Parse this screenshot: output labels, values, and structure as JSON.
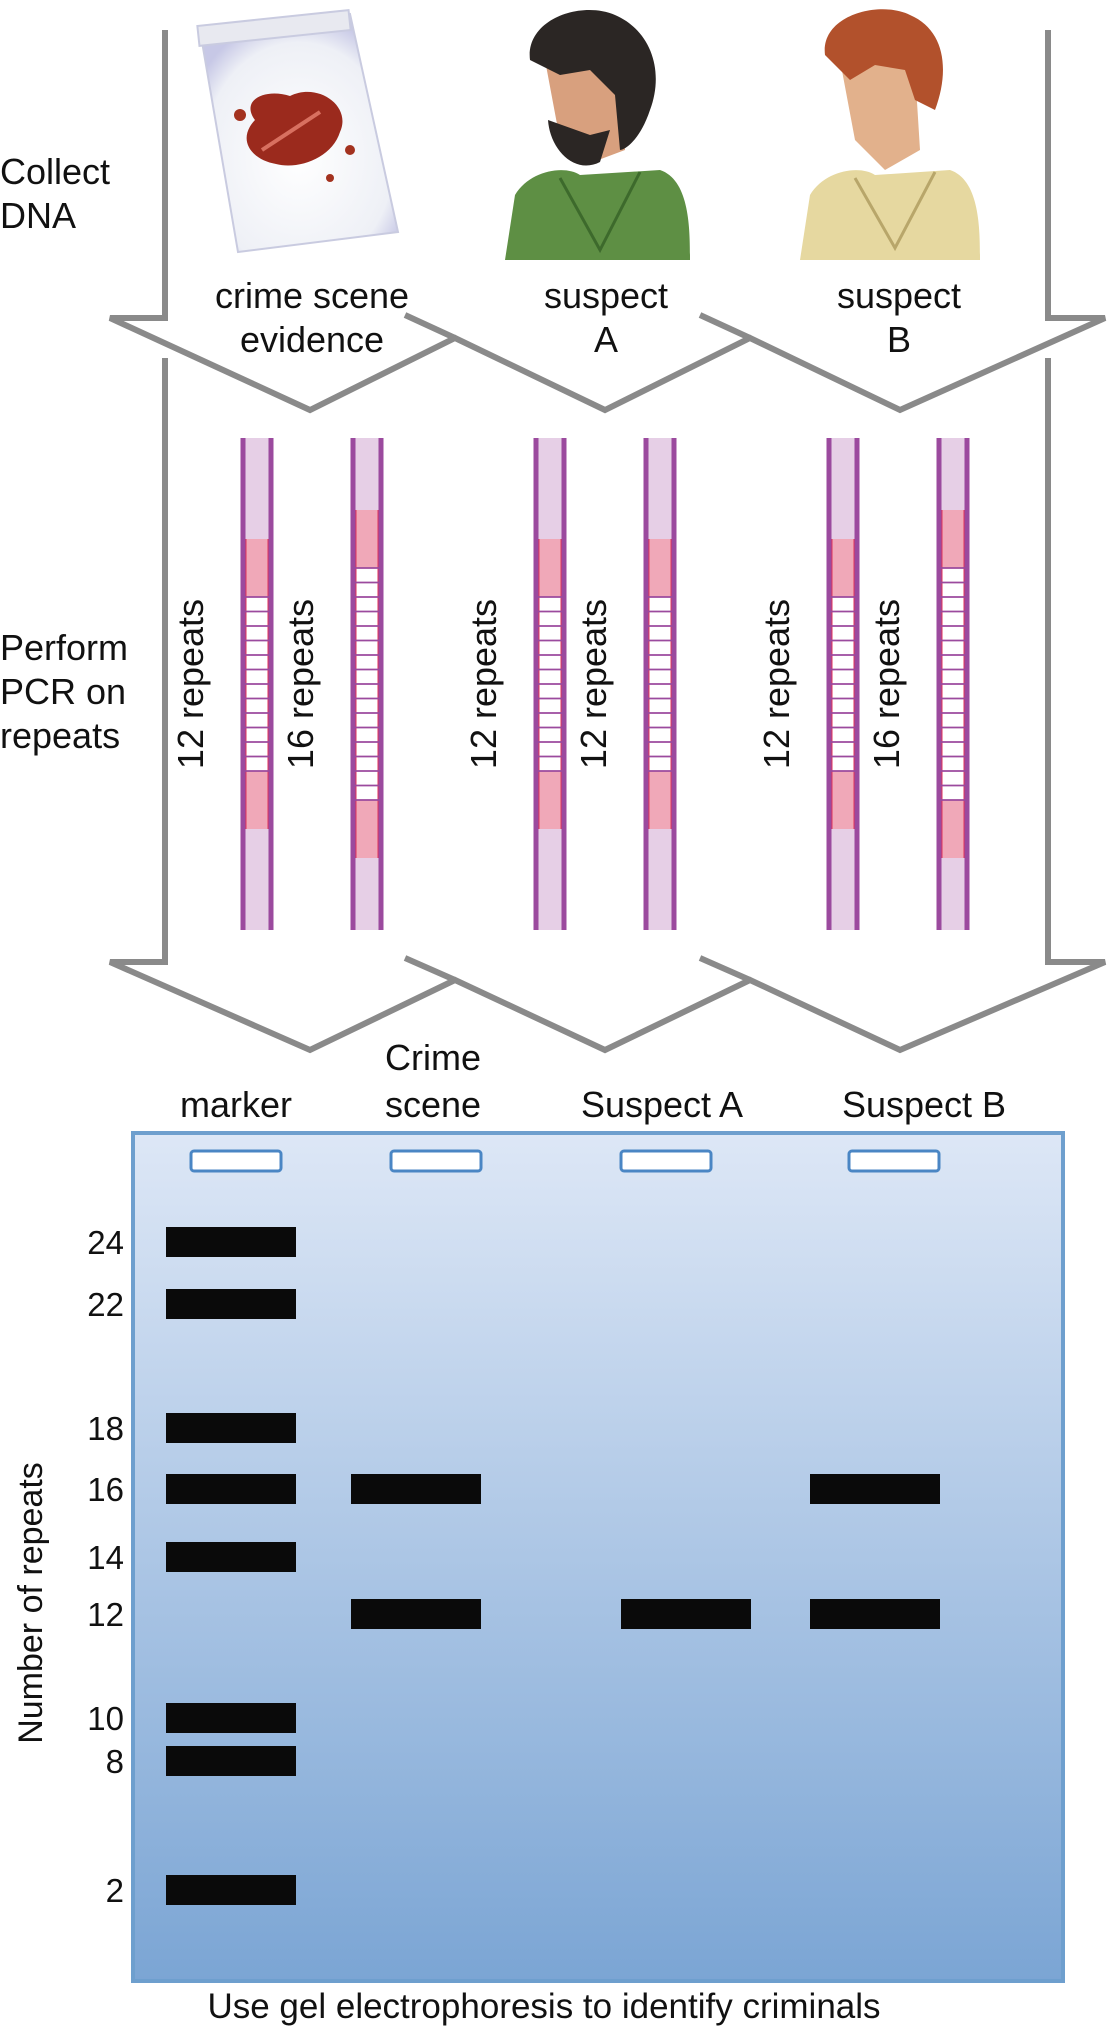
{
  "steps": {
    "collect": [
      "Collect",
      "DNA"
    ],
    "pcr": [
      "Perform",
      "PCR on",
      "repeats"
    ]
  },
  "sources": [
    {
      "id": "evidence",
      "lines": [
        "crime scene",
        "evidence"
      ],
      "picture": "blood-stained-bag"
    },
    {
      "id": "suspect-a",
      "lines": [
        "suspect",
        "A"
      ],
      "picture": "bearded-man-green-shirt"
    },
    {
      "id": "suspect-b",
      "lines": [
        "suspect",
        "B"
      ],
      "picture": "red-haired-man-yellow-shirt"
    }
  ],
  "pcr": [
    {
      "source": "evidence",
      "alleles": [
        {
          "repeats": 12,
          "label": "12 repeats"
        },
        {
          "repeats": 16,
          "label": "16 repeats"
        }
      ]
    },
    {
      "source": "suspect-a",
      "alleles": [
        {
          "repeats": 12,
          "label": "12 repeats"
        },
        {
          "repeats": 12,
          "label": "12 repeats"
        }
      ]
    },
    {
      "source": "suspect-b",
      "alleles": [
        {
          "repeats": 12,
          "label": "12 repeats"
        },
        {
          "repeats": 16,
          "label": "16 repeats"
        }
      ]
    }
  ],
  "gel": {
    "lanes": [
      {
        "id": "marker",
        "lines": [
          "marker"
        ],
        "bands": [
          24,
          22,
          18,
          14,
          10,
          8,
          2
        ]
      },
      {
        "id": "crime-scene",
        "lines": [
          "Crime",
          "scene"
        ],
        "bands": [
          16,
          12
        ]
      },
      {
        "id": "suspect-a",
        "lines": [
          "Suspect A"
        ],
        "bands": [
          12
        ]
      },
      {
        "id": "suspect-b",
        "lines": [
          "Suspect B"
        ],
        "bands": [
          16,
          12
        ]
      }
    ],
    "extra_bands": [
      {
        "lane": "marker",
        "repeats": 16
      }
    ],
    "axis_ticks": [
      24,
      22,
      18,
      16,
      14,
      12,
      10,
      8,
      2
    ],
    "ylabel": "Number of repeats"
  },
  "caption": "Use gel electrophoresis to identify criminals",
  "colors": {
    "arrow_stroke": "#8a8a8a",
    "dna_rail": "#9b4a9e",
    "dna_fill": "#e6cfe6",
    "flank": "#f0a8b8",
    "flank_edge": "#e0335a",
    "gel_top": "#dde7f6",
    "gel_bottom": "#7ba5d4",
    "gel_border": "#6e9fce",
    "well": "#4a86c4",
    "band": "#0a0a0a"
  }
}
